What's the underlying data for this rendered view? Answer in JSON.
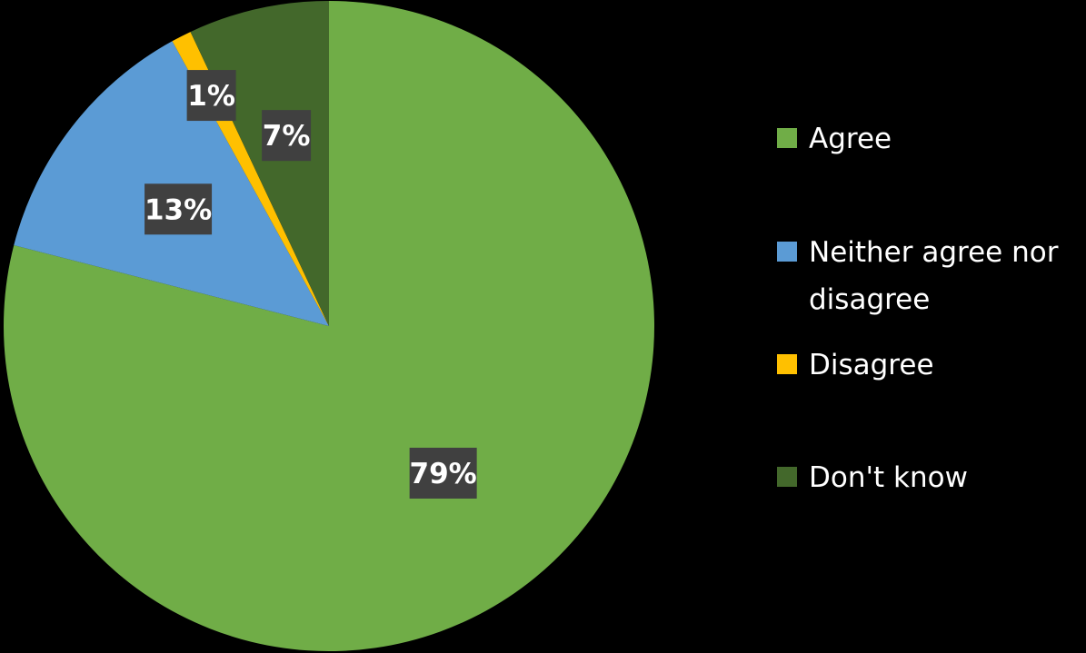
{
  "chart_data": {
    "type": "pie",
    "title": "",
    "categories": [
      "Agree",
      "Neither agree nor disagree",
      "Disagree",
      "Don't know"
    ],
    "values": [
      79,
      13,
      1,
      7
    ],
    "labels": [
      "79%",
      "13%",
      "1%",
      "7%"
    ],
    "colors": [
      "#70ad47",
      "#5b9bd5",
      "#ffc000",
      "#43682b"
    ],
    "legend": {
      "position": "right",
      "entries": [
        {
          "lines": [
            "Agree"
          ]
        },
        {
          "lines": [
            "Neither agree nor",
            "disagree"
          ]
        },
        {
          "lines": [
            "Disagree"
          ]
        },
        {
          "lines": [
            "Don't know"
          ]
        }
      ]
    }
  }
}
